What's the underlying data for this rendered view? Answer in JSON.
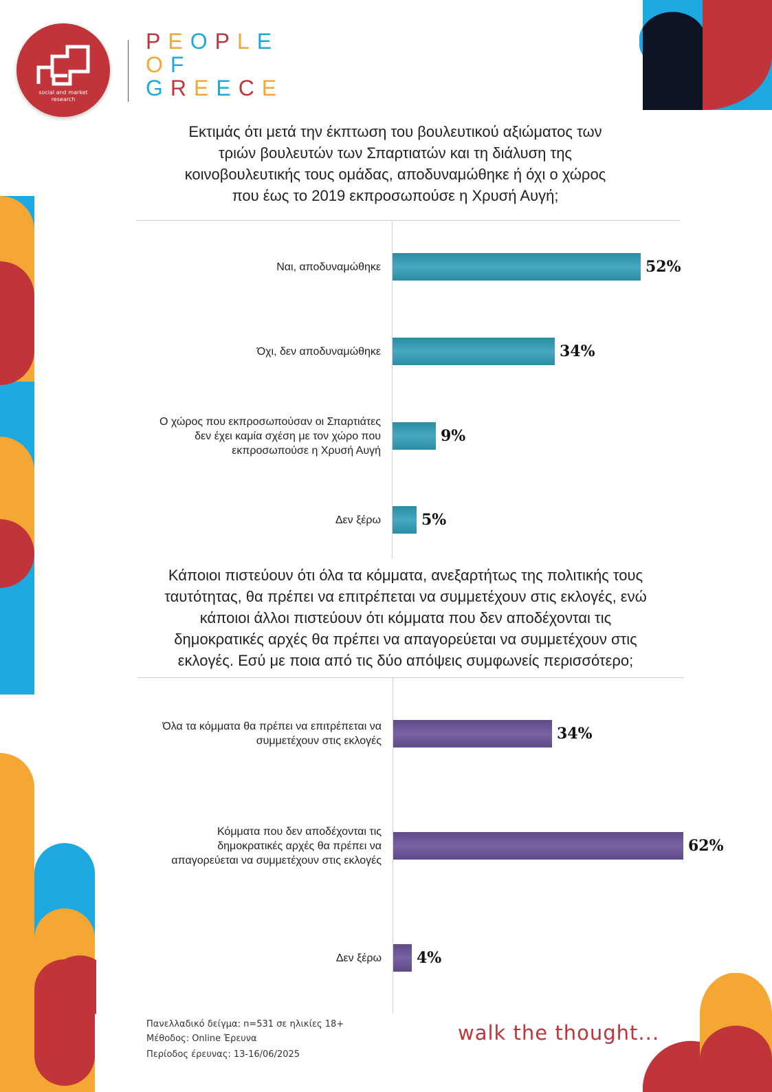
{
  "logo": {
    "subtitle_line1": "social and market",
    "subtitle_line2": "research"
  },
  "brand": {
    "line1": "PEOPLE",
    "line2": "OF",
    "line3": "GREECE"
  },
  "colors": {
    "accent_red": "#c0343a",
    "accent_orange": "#f5a733",
    "accent_blue": "#1ca9e1",
    "accent_navy": "#0f1424",
    "bar_teal": "#3a9db5",
    "bar_purple": "#6c5696"
  },
  "chart_data": [
    {
      "type": "bar",
      "orientation": "horizontal",
      "title": "Εκτιμάς ότι μετά την έκπτωση του βουλευτικού αξιώματος των τριών βουλευτών των Σπαρτιατών και τη διάλυση της κοινοβουλευτικής τους ομάδας, αποδυναμώθηκε ή όχι ο χώρος που έως το 2019 εκπροσωπούσε η Χρυσή Αυγή;",
      "title_lines": [
        "Εκτιμάς ότι μετά την έκπτωση του βουλευτικού αξιώματος των",
        "τριών βουλευτών των Σπαρτιατών και τη διάλυση της",
        "κοινοβουλευτικής τους ομάδας, αποδυναμώθηκε ή όχι ο χώρος",
        "που έως το 2019 εκπροσωπούσε η Χρυσή Αυγή;"
      ],
      "categories": [
        "Ναι, αποδυναμώθηκε",
        "Όχι, δεν αποδυναμώθηκε",
        "Ο χώρος που εκπροσωπούσαν οι Σπαρτιάτες δεν έχει καμία σχέση με τον χώρο που εκπροσωπούσε η Χρυσή Αυγή",
        "Δεν ξέρω"
      ],
      "category_lines": [
        [
          "Ναι, αποδυναμώθηκε"
        ],
        [
          "Όχι, δεν αποδυναμώθηκε"
        ],
        [
          "Ο χώρος που εκπροσωπούσαν οι Σπαρτιάτες",
          "δεν έχει καμία σχέση με τον χώρο που",
          "εκπροσωπούσε η Χρυσή Αυγή"
        ],
        [
          "Δεν ξέρω"
        ]
      ],
      "values": [
        52,
        34,
        9,
        5
      ],
      "value_labels": [
        "52%",
        "34%",
        "9%",
        "5%"
      ],
      "xlim": [
        0,
        100
      ],
      "color": "#3a9db5",
      "grid": false,
      "legend": "none"
    },
    {
      "type": "bar",
      "orientation": "horizontal",
      "title": "Κάποιοι πιστεύουν ότι όλα τα κόμματα, ανεξαρτήτως της πολιτικής τους ταυτότητας, θα πρέπει να επιτρέπεται να συμμετέχουν στις εκλογές, ενώ κάποιοι άλλοι πιστεύουν ότι κόμματα που δεν αποδέχονται τις δημοκρατικές αρχές θα πρέπει να απαγορεύεται να συμμετέχουν στις εκλογές. Εσύ με ποια από τις δύο απόψεις συμφωνείς περισσότερο;",
      "title_lines": [
        "Κάποιοι πιστεύουν ότι όλα τα κόμματα, ανεξαρτήτως της πολιτικής τους",
        "ταυτότητας, θα πρέπει να επιτρέπεται να συμμετέχουν στις εκλογές, ενώ",
        "κάποιοι άλλοι πιστεύουν ότι κόμματα που δεν αποδέχονται τις",
        "δημοκρατικές αρχές θα πρέπει να απαγορεύεται να συμμετέχουν στις",
        "εκλογές. Εσύ με ποια από τις δύο απόψεις συμφωνείς περισσότερο;"
      ],
      "categories": [
        "Όλα τα κόμματα θα πρέπει να επιτρέπεται να συμμετέχουν στις εκλογές",
        "Κόμματα που δεν αποδέχονται τις δημοκρατικές αρχές θα πρέπει να απαγορεύεται να συμμετέχουν στις εκλογές",
        "Δεν ξέρω"
      ],
      "category_lines": [
        [
          "Όλα τα κόμματα θα πρέπει να επιτρέπεται να",
          "συμμετέχουν στις εκλογές"
        ],
        [
          "Κόμματα που δεν αποδέχονται τις",
          "δημοκρατικές αρχές θα πρέπει να",
          "απαγορεύεται να συμμετέχουν στις εκλογές"
        ],
        [
          "Δεν ξέρω"
        ]
      ],
      "values": [
        34,
        62,
        4
      ],
      "value_labels": [
        "34%",
        "62%",
        "4%"
      ],
      "xlim": [
        0,
        100
      ],
      "color": "#6c5696",
      "grid": false,
      "legend": "none"
    }
  ],
  "footer": {
    "sample": "Πανελλαδικό δείγμα: n=531 σε ηλικίες 18+",
    "method": "Μέθοδος: Online Έρευνα",
    "period": "Περίοδος έρευνας: 13-16/06/2025",
    "tagline": "walk the thought..."
  }
}
